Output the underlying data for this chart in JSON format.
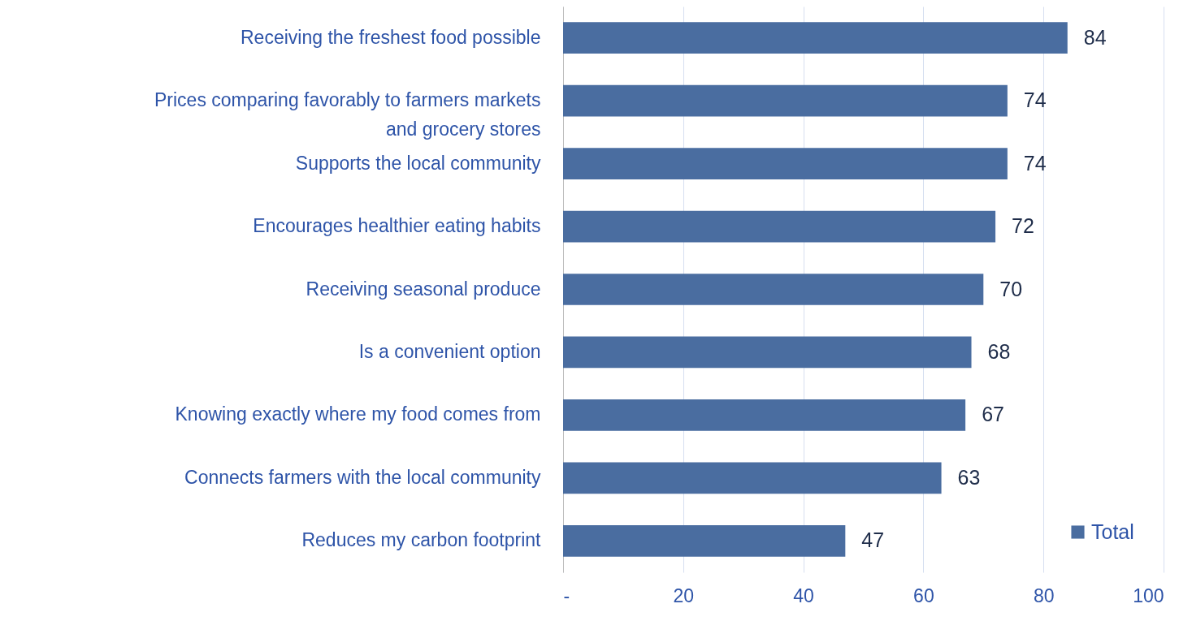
{
  "chart_data": {
    "type": "bar",
    "orientation": "horizontal",
    "categories": [
      "Receiving the freshest food possible",
      "Prices comparing favorably to farmers markets and grocery stores",
      "Supports the local community",
      "Encourages healthier eating habits",
      "Receiving seasonal produce",
      "Is a convenient option",
      "Knowing exactly where my food comes from",
      "Connects farmers with the local community",
      "Reduces my carbon footprint"
    ],
    "series": [
      {
        "name": "Total",
        "color": "#4a6da0",
        "values": [
          84,
          74,
          74,
          72,
          70,
          68,
          67,
          63,
          47
        ]
      }
    ],
    "xlim": [
      0,
      100
    ],
    "xticks": [
      {
        "value": 0,
        "label": "-"
      },
      20,
      40,
      60,
      80,
      100
    ],
    "grid": "x",
    "legend": "bottom right",
    "data_labels": true
  }
}
